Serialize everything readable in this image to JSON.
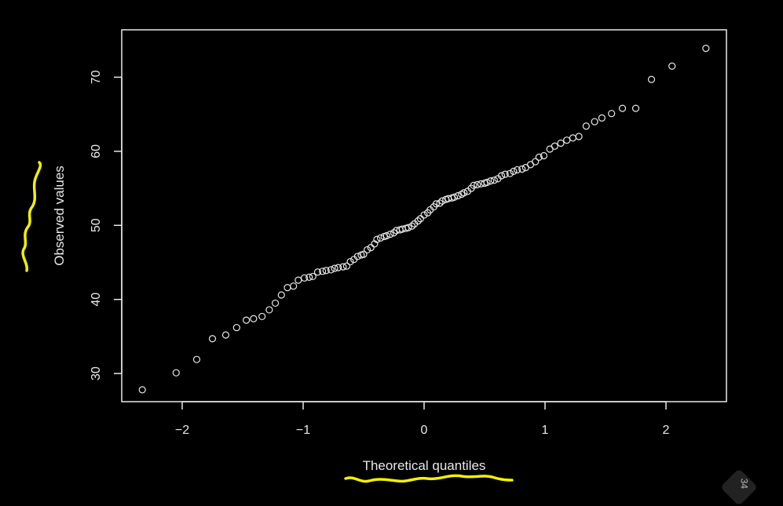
{
  "chart_data": {
    "type": "scatter",
    "title": "",
    "xlabel": "Theoretical quantiles",
    "ylabel": "Observed values",
    "xlim": [
      -2.5,
      2.5
    ],
    "ylim": [
      26.2,
      76.4
    ],
    "xticks": [
      -2,
      -1,
      0,
      1,
      2
    ],
    "yticks": [
      30,
      40,
      50,
      60,
      70
    ],
    "xtick_labels": [
      "−2",
      "−1",
      "0",
      "1",
      "2"
    ],
    "ytick_labels": [
      "30",
      "40",
      "50",
      "60",
      "70"
    ],
    "grid": false,
    "points": [
      [
        -2.33,
        27.8
      ],
      [
        -2.05,
        30.1
      ],
      [
        -1.88,
        31.9
      ],
      [
        -1.75,
        34.7
      ],
      [
        -1.64,
        35.2
      ],
      [
        -1.55,
        36.2
      ],
      [
        -1.47,
        37.2
      ],
      [
        -1.41,
        37.4
      ],
      [
        -1.34,
        37.7
      ],
      [
        -1.28,
        38.6
      ],
      [
        -1.23,
        39.5
      ],
      [
        -1.18,
        40.6
      ],
      [
        -1.13,
        41.6
      ],
      [
        -1.08,
        41.8
      ],
      [
        -1.04,
        42.6
      ],
      [
        -0.99,
        42.9
      ],
      [
        -0.95,
        43.0
      ],
      [
        -0.92,
        43.1
      ],
      [
        -0.88,
        43.7
      ],
      [
        -0.84,
        43.8
      ],
      [
        -0.81,
        43.9
      ],
      [
        -0.77,
        44.0
      ],
      [
        -0.74,
        44.2
      ],
      [
        -0.71,
        44.3
      ],
      [
        -0.67,
        44.4
      ],
      [
        -0.64,
        44.5
      ],
      [
        -0.61,
        45.1
      ],
      [
        -0.58,
        45.4
      ],
      [
        -0.55,
        45.8
      ],
      [
        -0.52,
        46.0
      ],
      [
        -0.5,
        46.1
      ],
      [
        -0.47,
        46.7
      ],
      [
        -0.44,
        47.0
      ],
      [
        -0.41,
        47.5
      ],
      [
        -0.39,
        48.1
      ],
      [
        -0.36,
        48.3
      ],
      [
        -0.33,
        48.5
      ],
      [
        -0.31,
        48.6
      ],
      [
        -0.28,
        48.8
      ],
      [
        -0.25,
        49.0
      ],
      [
        -0.23,
        49.3
      ],
      [
        -0.2,
        49.4
      ],
      [
        -0.18,
        49.5
      ],
      [
        -0.15,
        49.6
      ],
      [
        -0.13,
        49.7
      ],
      [
        -0.1,
        49.9
      ],
      [
        -0.08,
        50.2
      ],
      [
        -0.05,
        50.6
      ],
      [
        -0.03,
        50.9
      ],
      [
        0.0,
        51.4
      ],
      [
        0.03,
        51.7
      ],
      [
        0.05,
        52.1
      ],
      [
        0.08,
        52.5
      ],
      [
        0.1,
        52.9
      ],
      [
        0.13,
        53.0
      ],
      [
        0.15,
        53.3
      ],
      [
        0.18,
        53.5
      ],
      [
        0.2,
        53.6
      ],
      [
        0.23,
        53.7
      ],
      [
        0.25,
        53.8
      ],
      [
        0.28,
        54.0
      ],
      [
        0.31,
        54.2
      ],
      [
        0.33,
        54.4
      ],
      [
        0.36,
        54.6
      ],
      [
        0.39,
        55.0
      ],
      [
        0.41,
        55.4
      ],
      [
        0.44,
        55.5
      ],
      [
        0.47,
        55.6
      ],
      [
        0.5,
        55.7
      ],
      [
        0.52,
        55.8
      ],
      [
        0.55,
        56.0
      ],
      [
        0.58,
        56.1
      ],
      [
        0.61,
        56.3
      ],
      [
        0.64,
        56.7
      ],
      [
        0.67,
        56.9
      ],
      [
        0.71,
        57.0
      ],
      [
        0.74,
        57.3
      ],
      [
        0.77,
        57.5
      ],
      [
        0.81,
        57.6
      ],
      [
        0.84,
        57.8
      ],
      [
        0.88,
        58.2
      ],
      [
        0.92,
        58.6
      ],
      [
        0.95,
        59.2
      ],
      [
        0.99,
        59.4
      ],
      [
        1.04,
        60.3
      ],
      [
        1.08,
        60.7
      ],
      [
        1.13,
        61.1
      ],
      [
        1.18,
        61.5
      ],
      [
        1.23,
        61.8
      ],
      [
        1.28,
        62.0
      ],
      [
        1.34,
        63.4
      ],
      [
        1.41,
        64.0
      ],
      [
        1.47,
        64.5
      ],
      [
        1.55,
        65.1
      ],
      [
        1.64,
        65.8
      ],
      [
        1.75,
        65.8
      ],
      [
        1.88,
        69.7
      ],
      [
        2.05,
        71.5
      ],
      [
        2.33,
        73.9
      ]
    ]
  },
  "page_badge": "34"
}
